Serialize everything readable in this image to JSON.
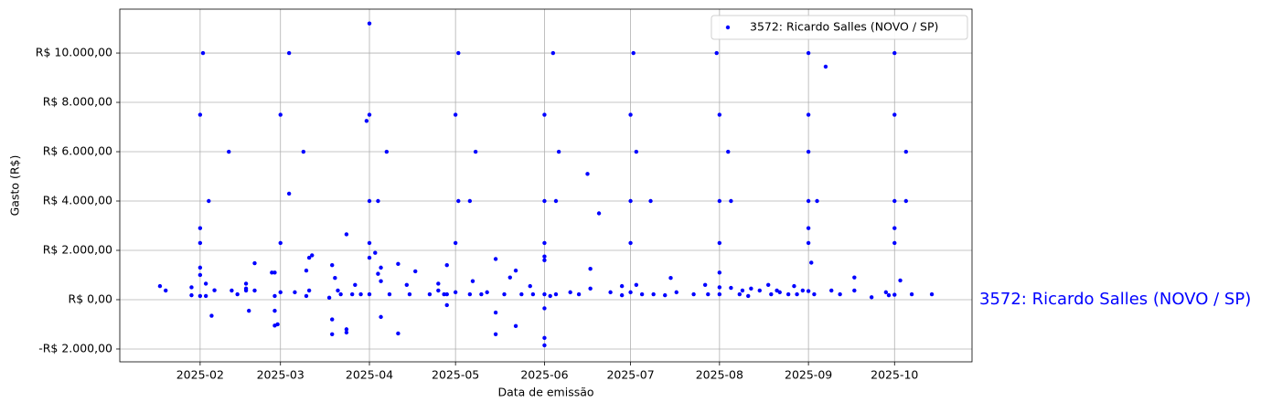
{
  "chart_data": {
    "type": "scatter",
    "xlabel": "Data de emissão",
    "ylabel": "Gasto (R$)",
    "annotation": "3572: Ricardo Salles (NOVO / SP)",
    "xlim": [
      3,
      300
    ],
    "ylim": [
      -2520,
      11780
    ],
    "xticks": [
      {
        "value": 31,
        "label": "2025-02"
      },
      {
        "value": 59,
        "label": "2025-03"
      },
      {
        "value": 90,
        "label": "2025-04"
      },
      {
        "value": 120,
        "label": "2025-05"
      },
      {
        "value": 151,
        "label": "2025-06"
      },
      {
        "value": 181,
        "label": "2025-07"
      },
      {
        "value": 212,
        "label": "2025-08"
      },
      {
        "value": 243,
        "label": "2025-09"
      },
      {
        "value": 273,
        "label": "2025-10"
      }
    ],
    "yticks": [
      {
        "value": -2000,
        "label": "-R$ 2.000,00"
      },
      {
        "value": 0,
        "label": "R$ 0,00"
      },
      {
        "value": 2000,
        "label": "R$ 2.000,00"
      },
      {
        "value": 4000,
        "label": "R$ 4.000,00"
      },
      {
        "value": 6000,
        "label": "R$ 6.000,00"
      },
      {
        "value": 8000,
        "label": "R$ 8.000,00"
      },
      {
        "value": 10000,
        "label": "R$ 10.000,00"
      }
    ],
    "grid": true,
    "legend": "upper right",
    "x": [
      17,
      19,
      28,
      28,
      31,
      31,
      31,
      31,
      31,
      31,
      32,
      34,
      33,
      33,
      35,
      36,
      41,
      42,
      44,
      47,
      47,
      47,
      48,
      50,
      50,
      56,
      57,
      57,
      57,
      58,
      57,
      59,
      59,
      59,
      62,
      62,
      64,
      67,
      68,
      69,
      70,
      69,
      68,
      76,
      77,
      77,
      77,
      78,
      79,
      80,
      82,
      82,
      82,
      84,
      85,
      87,
      89,
      90,
      90,
      90,
      90,
      90,
      90,
      92,
      93,
      93,
      94,
      94,
      94,
      96,
      97,
      100,
      100,
      103,
      104,
      106,
      111,
      114,
      114,
      116,
      117,
      117,
      117,
      120,
      120,
      120,
      121,
      121,
      125,
      125,
      126,
      127,
      129,
      131,
      134,
      134,
      134,
      137,
      139,
      141,
      141,
      143,
      146,
      147,
      151,
      151,
      151,
      151,
      151,
      151,
      151,
      151,
      151,
      154,
      155,
      156,
      153,
      155,
      160,
      163,
      166,
      167,
      167,
      170,
      174,
      178,
      178,
      181,
      181,
      181,
      181,
      182,
      183,
      183,
      185,
      188,
      189,
      193,
      195,
      197,
      203,
      207,
      208,
      211,
      212,
      212,
      212,
      212,
      212,
      212,
      215,
      216,
      216,
      219,
      220,
      222,
      223,
      226,
      229,
      230,
      232,
      233,
      236,
      238,
      239,
      241,
      243,
      243,
      243,
      243,
      243,
      243,
      243,
      244,
      245,
      246,
      249,
      251,
      254,
      259,
      259,
      265,
      270,
      271,
      273,
      273,
      273,
      273,
      273,
      273,
      275,
      277,
      277,
      279,
      286
    ],
    "series": [
      {
        "name": "3572: Ricardo Salles (NOVO / SP)",
        "color": "#0000ff",
        "values": [
          550,
          370,
          500,
          180,
          7500,
          2900,
          2300,
          1300,
          1000,
          150,
          10000,
          4000,
          650,
          150,
          -650,
          380,
          6000,
          370,
          220,
          650,
          450,
          370,
          -450,
          1480,
          370,
          1100,
          1100,
          -450,
          -1050,
          -1000,
          150,
          7500,
          2300,
          300,
          10000,
          4300,
          300,
          6000,
          1180,
          1700,
          1800,
          370,
          150,
          80,
          1400,
          -800,
          -1400,
          880,
          370,
          220,
          2650,
          -1200,
          -1330,
          220,
          600,
          220,
          7250,
          11200,
          7500,
          4000,
          2300,
          1700,
          220,
          1900,
          4000,
          1050,
          -700,
          750,
          1300,
          6000,
          220,
          -1370,
          1450,
          600,
          220,
          1150,
          220,
          650,
          370,
          220,
          -220,
          220,
          1400,
          7500,
          2300,
          300,
          10000,
          4000,
          4000,
          220,
          750,
          6000,
          220,
          300,
          -1400,
          1650,
          -520,
          220,
          900,
          1180,
          -1070,
          220,
          550,
          220,
          7500,
          4000,
          2300,
          1750,
          1600,
          -350,
          -1550,
          -1850,
          220,
          10000,
          4000,
          6000,
          150,
          220,
          300,
          220,
          5100,
          1250,
          450,
          3500,
          300,
          550,
          180,
          7500,
          4000,
          2300,
          300,
          10000,
          6000,
          600,
          220,
          4000,
          220,
          180,
          880,
          300,
          220,
          600,
          220,
          10000,
          7500,
          4000,
          2300,
          1100,
          500,
          220,
          6000,
          4000,
          480,
          220,
          370,
          150,
          450,
          370,
          600,
          220,
          370,
          300,
          220,
          550,
          220,
          370,
          10000,
          7500,
          6000,
          4000,
          2900,
          2300,
          350,
          1500,
          220,
          4000,
          9450,
          370,
          220,
          370,
          900,
          100,
          300,
          180,
          10000,
          7500,
          4000,
          2900,
          2300,
          200,
          780,
          6000,
          4000,
          220,
          220
        ]
      }
    ]
  }
}
